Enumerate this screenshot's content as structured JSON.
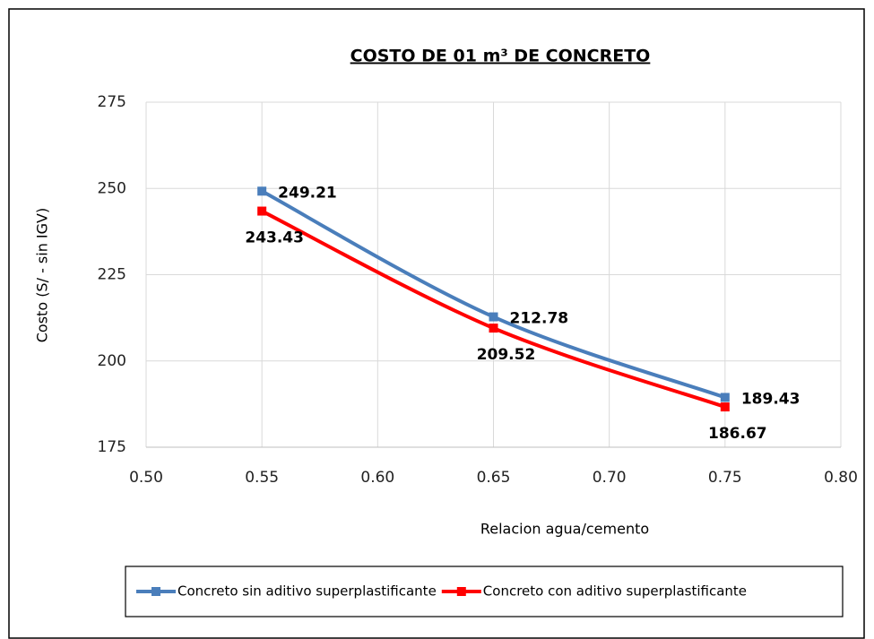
{
  "chart_data": {
    "type": "line",
    "title": "COSTO DE 01 m³ DE CONCRETO",
    "x_label": "Relacion agua/cemento",
    "y_label": "Costo (S/ - sin IGV)",
    "x": [
      0.55,
      0.65,
      0.75
    ],
    "series": [
      {
        "name": "Concreto sin aditivo superplastificante",
        "color": "#4a7ebb",
        "label_color": "#1f3864",
        "values": [
          249.21,
          212.78,
          189.43
        ]
      },
      {
        "name": "Concreto con aditivo superplastificante",
        "color": "#ff0000",
        "label_color": "#ff0000",
        "values": [
          243.43,
          209.52,
          186.67
        ]
      }
    ],
    "xlim": [
      0.5,
      0.8
    ],
    "xticks": [
      {
        "value": 0.5,
        "label": "0.50"
      },
      {
        "value": 0.55,
        "label": "0.55"
      },
      {
        "value": 0.6,
        "label": "0.60"
      },
      {
        "value": 0.65,
        "label": "0.65"
      },
      {
        "value": 0.7,
        "label": "0.70"
      },
      {
        "value": 0.75,
        "label": "0.75"
      },
      {
        "value": 0.8,
        "label": "0.80"
      }
    ],
    "ylim": [
      175,
      275
    ],
    "yticks": [
      175,
      200,
      225,
      250,
      275
    ],
    "grid": true,
    "smooth": true,
    "legend": "bottom"
  }
}
